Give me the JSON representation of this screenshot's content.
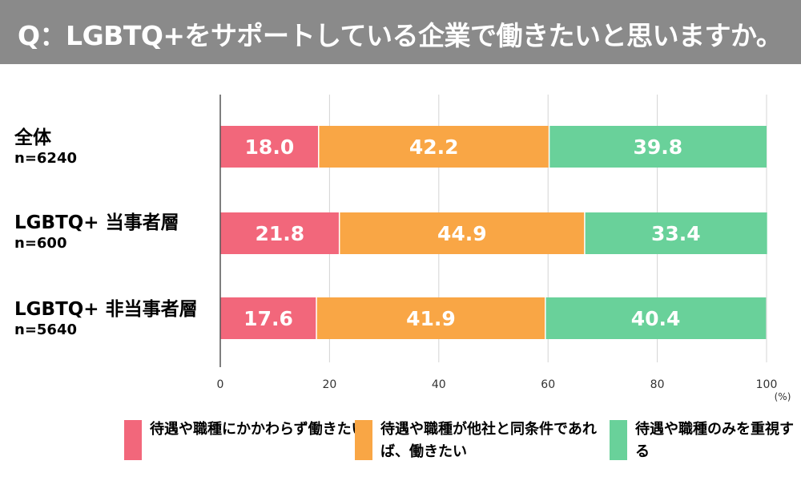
{
  "header": {
    "title": "Q：LGBTQ+をサポートしている企業で働きたいと思いますか。"
  },
  "chart_data": {
    "type": "bar",
    "orientation": "horizontal",
    "stacked": true,
    "title": "Q：LGBTQ+をサポートしている企業で働きたいと思いますか。",
    "categories": [
      {
        "name": "全体",
        "n": "n=6240"
      },
      {
        "name": "LGBTQ+ 当事者層",
        "n": "n=600"
      },
      {
        "name": "LGBTQ+ 非当事者層",
        "n": "n=5640"
      }
    ],
    "series": [
      {
        "name": "待遇や職種にかかわらず働きたい",
        "color": "#f2677b",
        "values": [
          18.0,
          21.8,
          17.6
        ]
      },
      {
        "name": "待遇や職種が他社と同条件であれば、働きたい",
        "color": "#f9a645",
        "values": [
          42.2,
          44.9,
          41.9
        ]
      },
      {
        "name": "待遇や職種のみを重視する",
        "color": "#69d19a",
        "values": [
          39.8,
          33.4,
          40.4
        ]
      }
    ],
    "xlim": [
      0,
      100
    ],
    "xticks": [
      "0",
      "20",
      "40",
      "60",
      "80",
      "100"
    ],
    "xunit": "(%)",
    "grid": true,
    "legend": "bottom"
  }
}
